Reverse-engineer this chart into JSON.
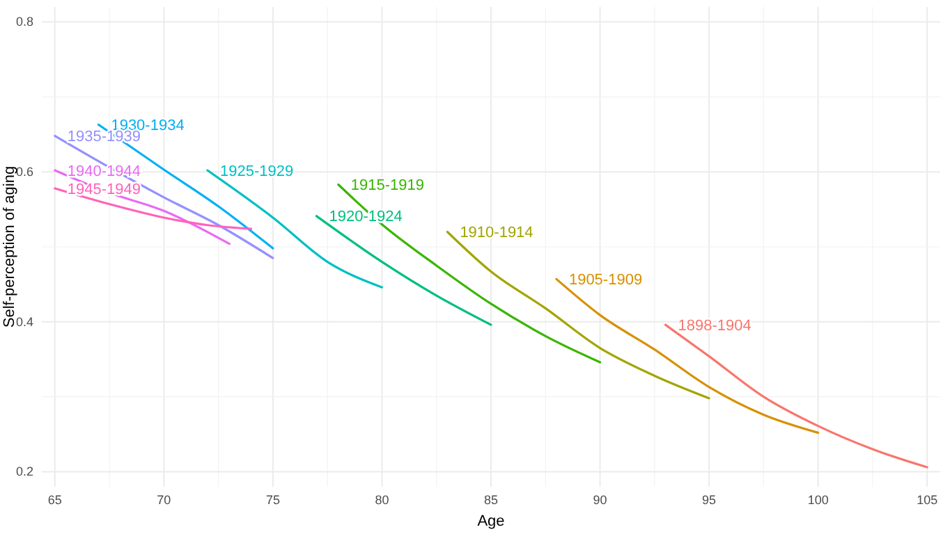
{
  "chart_data": {
    "type": "line",
    "xlabel": "Age",
    "ylabel": "Self-perception of aging",
    "xlim": [
      64.4,
      105.6
    ],
    "ylim": [
      0.18,
      0.82
    ],
    "xticks": [
      65,
      {
        "value": 67.5,
        "label": null
      },
      70,
      {
        "value": 72.5,
        "label": null
      },
      75,
      {
        "value": 77.5,
        "label": null
      },
      80,
      {
        "value": 82.5,
        "label": null
      },
      85,
      {
        "value": 87.5,
        "label": null
      },
      90,
      {
        "value": 92.5,
        "label": null
      },
      95,
      {
        "value": 97.5,
        "label": null
      },
      100,
      {
        "value": 102.5,
        "label": null
      },
      105
    ],
    "yticks": [
      0.2,
      {
        "value": 0.3,
        "label": null
      },
      0.4,
      {
        "value": 0.5,
        "label": null
      },
      0.6,
      {
        "value": 0.7,
        "label": null
      },
      0.8
    ],
    "grid": true,
    "legend": false,
    "marker": "none",
    "line_style": "solid",
    "series": [
      {
        "name": "1898-1904",
        "color": "#f8766d",
        "x": [
          93,
          95,
          97.5,
          100,
          102.5,
          105
        ],
        "values": [
          0.396,
          0.354,
          0.3,
          0.261,
          0.23,
          0.206
        ]
      },
      {
        "name": "1905-1909",
        "color": "#d89000",
        "x": [
          88,
          90,
          92.5,
          95,
          97.5,
          100
        ],
        "values": [
          0.457,
          0.409,
          0.363,
          0.313,
          0.276,
          0.252
        ]
      },
      {
        "name": "1910-1914",
        "color": "#a3a500",
        "x": [
          83,
          85,
          87.5,
          90,
          92.5,
          95
        ],
        "values": [
          0.52,
          0.467,
          0.418,
          0.365,
          0.328,
          0.298
        ]
      },
      {
        "name": "1915-1919",
        "color": "#39b600",
        "x": [
          78,
          80,
          82.5,
          85,
          87.5,
          90
        ],
        "values": [
          0.583,
          0.53,
          0.475,
          0.424,
          0.381,
          0.346
        ]
      },
      {
        "name": "1920-1924",
        "color": "#00bf7d",
        "x": [
          77,
          80,
          82.5,
          85
        ],
        "values": [
          0.541,
          0.48,
          0.435,
          0.396
        ]
      },
      {
        "name": "1925-1929",
        "color": "#00bfc4",
        "x": [
          72,
          75,
          77.5,
          80
        ],
        "values": [
          0.602,
          0.539,
          0.48,
          0.446
        ]
      },
      {
        "name": "1930-1934",
        "color": "#00b0f6",
        "x": [
          67,
          70,
          72.5,
          75
        ],
        "values": [
          0.663,
          0.603,
          0.554,
          0.498
        ]
      },
      {
        "name": "1935-1939",
        "color": "#9590ff",
        "x": [
          65,
          67.5,
          70,
          72.5,
          75
        ],
        "values": [
          0.648,
          0.606,
          0.566,
          0.529,
          0.485
        ]
      },
      {
        "name": "1940-1944",
        "color": "#e76bf3",
        "x": [
          65,
          67.5,
          70,
          73
        ],
        "values": [
          0.602,
          0.572,
          0.548,
          0.504
        ]
      },
      {
        "name": "1945-1949",
        "color": "#ff62bc",
        "x": [
          65,
          67.5,
          70,
          72,
          74
        ],
        "values": [
          0.578,
          0.557,
          0.539,
          0.529,
          0.524
        ]
      }
    ]
  }
}
